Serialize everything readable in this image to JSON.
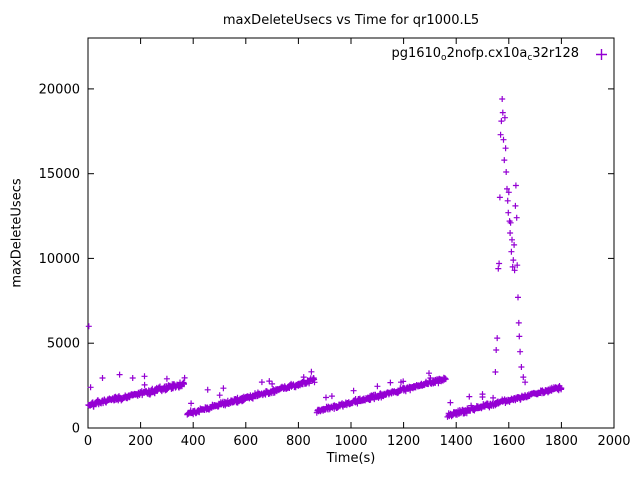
{
  "chart_data": {
    "type": "scatter",
    "title": "maxDeleteUsecs vs Time for qr1000.L5",
    "xlabel": "Time(s)",
    "ylabel": "maxDeleteUsecs",
    "xlim": [
      0,
      2000
    ],
    "ylim": [
      0,
      23000
    ],
    "xticks": [
      0,
      200,
      400,
      600,
      800,
      1000,
      1200,
      1400,
      1600,
      1800,
      2000
    ],
    "yticks": [
      0,
      5000,
      10000,
      15000,
      20000
    ],
    "grid": false,
    "legend_position": "top-right-inside",
    "series": [
      {
        "name": "pg1610_o2nofp.cx10a_c32r128",
        "label_parts": [
          {
            "t": "pg1610"
          },
          {
            "s": "o"
          },
          {
            "t": "2nofp.cx10a"
          },
          {
            "s": "c"
          },
          {
            "t": "32r128"
          }
        ],
        "marker": "+",
        "color": "#9400d3",
        "segments": [
          {
            "x_start": 2,
            "x_end": 368,
            "y_start": 1350,
            "y_end": 2600,
            "step": 2,
            "noise": 180
          },
          {
            "x_start": 378,
            "x_end": 862,
            "y_start": 850,
            "y_end": 2850,
            "step": 2,
            "noise": 170
          },
          {
            "x_start": 870,
            "x_end": 1360,
            "y_start": 1000,
            "y_end": 2900,
            "step": 2,
            "noise": 160
          },
          {
            "x_start": 1368,
            "x_end": 1800,
            "y_start": 750,
            "y_end": 2400,
            "step": 2,
            "noise": 160
          }
        ],
        "outliers": [
          [
            3,
            6000
          ],
          [
            10,
            2400
          ],
          [
            55,
            2950
          ],
          [
            120,
            3150
          ],
          [
            170,
            2950
          ],
          [
            215,
            3050
          ],
          [
            300,
            2900
          ],
          [
            392,
            1450
          ],
          [
            455,
            2250
          ],
          [
            515,
            2350
          ],
          [
            700,
            2600
          ],
          [
            820,
            3000
          ],
          [
            858,
            2950
          ],
          [
            905,
            1800
          ],
          [
            1010,
            2200
          ],
          [
            1190,
            2700
          ],
          [
            1302,
            2950
          ],
          [
            1355,
            2900
          ],
          [
            1378,
            1500
          ],
          [
            1450,
            1850
          ],
          [
            1500,
            2000
          ],
          [
            1549,
            3300
          ],
          [
            1552,
            4600
          ],
          [
            1556,
            5300
          ],
          [
            1560,
            9400
          ],
          [
            1563,
            9700
          ],
          [
            1566,
            13600
          ],
          [
            1569,
            17300
          ],
          [
            1572,
            18100
          ],
          [
            1575,
            19400
          ],
          [
            1577,
            18600
          ],
          [
            1580,
            17000
          ],
          [
            1583,
            15800
          ],
          [
            1585,
            18300
          ],
          [
            1588,
            16500
          ],
          [
            1590,
            15100
          ],
          [
            1593,
            14100
          ],
          [
            1596,
            13400
          ],
          [
            1598,
            12700
          ],
          [
            1600,
            13900
          ],
          [
            1603,
            12200
          ],
          [
            1605,
            11500
          ],
          [
            1607,
            12100
          ],
          [
            1610,
            10400
          ],
          [
            1612,
            11100
          ],
          [
            1615,
            9500
          ],
          [
            1617,
            9900
          ],
          [
            1620,
            10800
          ],
          [
            1622,
            9300
          ],
          [
            1625,
            13100
          ],
          [
            1627,
            14300
          ],
          [
            1630,
            12400
          ],
          [
            1632,
            9600
          ],
          [
            1635,
            7700
          ],
          [
            1638,
            6200
          ],
          [
            1640,
            5400
          ],
          [
            1643,
            4500
          ],
          [
            1648,
            3600
          ],
          [
            1655,
            3000
          ],
          [
            1662,
            2700
          ]
        ]
      }
    ]
  }
}
